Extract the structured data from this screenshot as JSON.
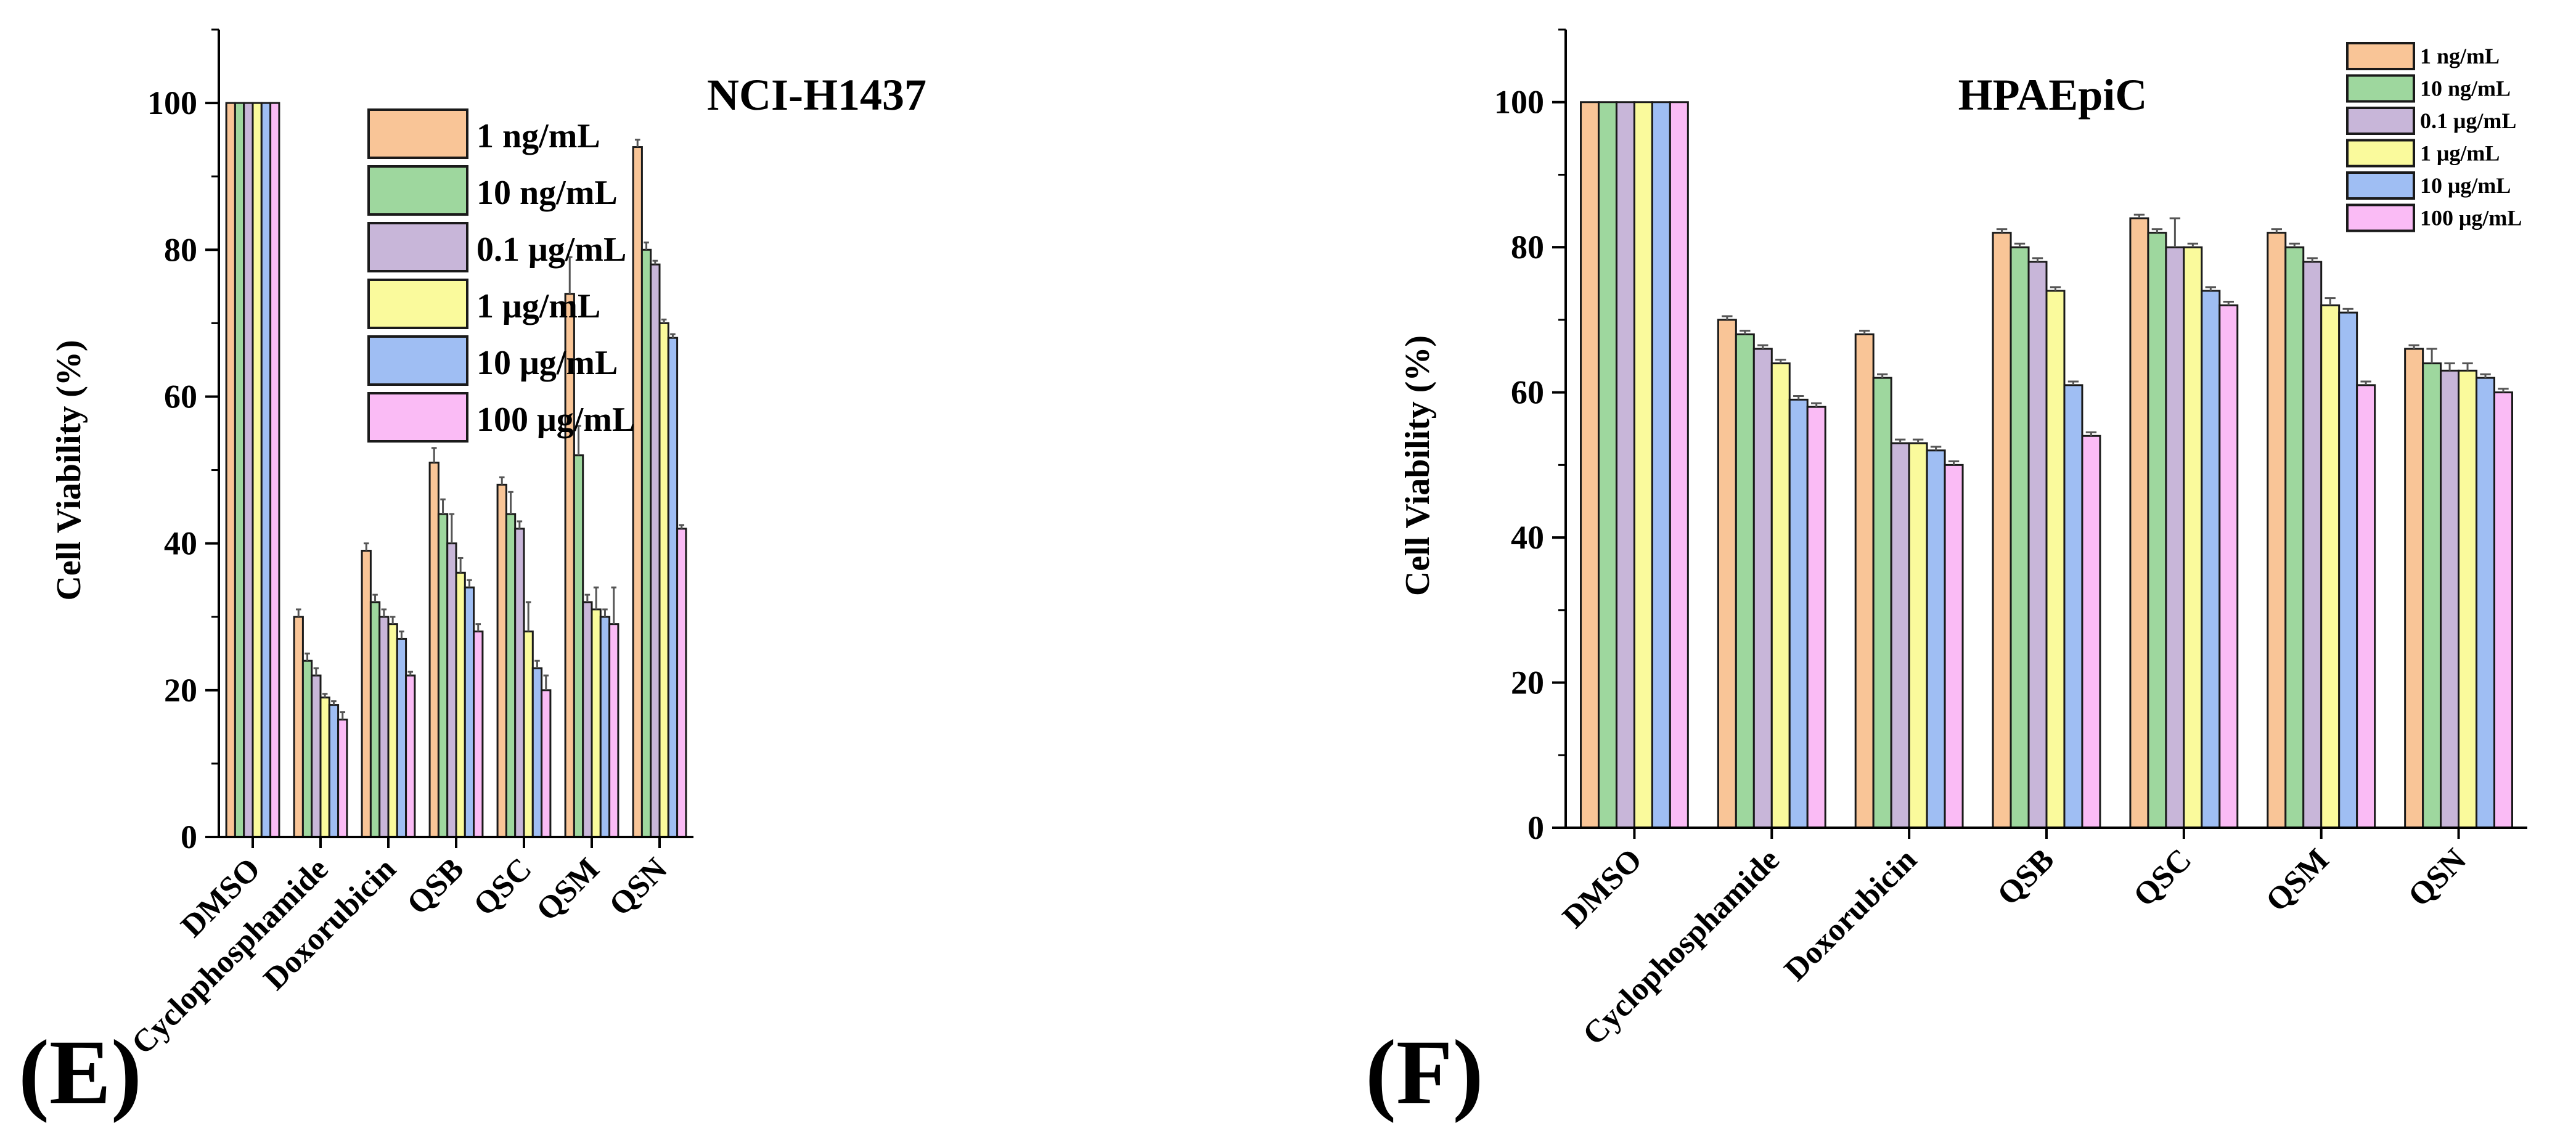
{
  "figure": {
    "panel_labels": [
      "(E)",
      "(F)"
    ]
  },
  "chart_data": [
    {
      "type": "bar",
      "panel": "(E)",
      "title": "NCI-H1437",
      "xlabel": "",
      "ylabel": "Cell Viability (%)",
      "ylim": [
        0,
        110
      ],
      "yticks": [
        0,
        20,
        40,
        60,
        80,
        100
      ],
      "grid": false,
      "legend_position": "top-center",
      "categories": [
        "DMSO",
        "Cyclophosphamide",
        "Doxorubicin",
        "QSB",
        "QSC",
        "QSM",
        "QSN"
      ],
      "series": [
        {
          "name": "1 ng/mL",
          "color": "#F9C597",
          "values": [
            100,
            30,
            39,
            51,
            48,
            74,
            94
          ],
          "errors": [
            0,
            1,
            1,
            2,
            1,
            5,
            1
          ]
        },
        {
          "name": "10 ng/mL",
          "color": "#9ED79E",
          "values": [
            100,
            24,
            32,
            44,
            44,
            52,
            80
          ],
          "errors": [
            0,
            1,
            1,
            2,
            3,
            4,
            1
          ]
        },
        {
          "name": "0.1 μg/mL",
          "color": "#C8B6D9",
          "values": [
            100,
            22,
            30,
            40,
            42,
            32,
            78
          ],
          "errors": [
            0,
            1,
            1,
            4,
            1,
            1,
            0.5
          ]
        },
        {
          "name": "1 μg/mL",
          "color": "#FAFA9C",
          "values": [
            100,
            19,
            29,
            36,
            28,
            31,
            70
          ],
          "errors": [
            0,
            0.5,
            1,
            2,
            4,
            3,
            0.5
          ]
        },
        {
          "name": "10 μg/mL",
          "color": "#9FBEF3",
          "values": [
            100,
            18,
            27,
            34,
            23,
            30,
            68
          ],
          "errors": [
            0,
            0.5,
            1,
            1,
            1,
            1,
            0.5
          ]
        },
        {
          "name": "100 μg/mL",
          "color": "#FABBF5",
          "values": [
            100,
            16,
            22,
            28,
            20,
            29,
            42
          ],
          "errors": [
            0,
            1,
            0.5,
            1,
            2,
            5,
            0.5
          ]
        }
      ]
    },
    {
      "type": "bar",
      "panel": "(F)",
      "title": "HPAEpiC",
      "xlabel": "",
      "ylabel": "Cell Viability (%)",
      "ylim": [
        0,
        110
      ],
      "yticks": [
        0,
        20,
        40,
        60,
        80,
        100
      ],
      "grid": false,
      "legend_position": "top-right",
      "categories": [
        "DMSO",
        "Cyclophosphamide",
        "Doxorubicin",
        "QSB",
        "QSC",
        "QSM",
        "QSN"
      ],
      "series": [
        {
          "name": "1 ng/mL",
          "color": "#F9C597",
          "values": [
            100,
            70,
            68,
            82,
            84,
            82,
            66
          ],
          "errors": [
            0,
            0.5,
            0.5,
            0.5,
            0.5,
            0.5,
            0.5
          ]
        },
        {
          "name": "10 ng/mL",
          "color": "#9ED79E",
          "values": [
            100,
            68,
            62,
            80,
            82,
            80,
            64
          ],
          "errors": [
            0,
            0.5,
            0.5,
            0.5,
            0.5,
            0.5,
            2
          ]
        },
        {
          "name": "0.1 μg/mL",
          "color": "#C8B6D9",
          "values": [
            100,
            66,
            53,
            78,
            80,
            78,
            63
          ],
          "errors": [
            0,
            0.5,
            0.5,
            0.5,
            4,
            0.5,
            1
          ]
        },
        {
          "name": "1 μg/mL",
          "color": "#FAFA9C",
          "values": [
            100,
            64,
            53,
            74,
            80,
            72,
            63
          ],
          "errors": [
            0,
            0.5,
            0.5,
            0.5,
            0.5,
            1,
            1
          ]
        },
        {
          "name": "10 μg/mL",
          "color": "#9FBEF3",
          "values": [
            100,
            59,
            52,
            61,
            74,
            71,
            62
          ],
          "errors": [
            0,
            0.5,
            0.5,
            0.5,
            0.5,
            0.5,
            0.5
          ]
        },
        {
          "name": "100 μg/mL",
          "color": "#FABBF5",
          "values": [
            100,
            58,
            50,
            54,
            72,
            61,
            60
          ],
          "errors": [
            0,
            0.5,
            0.5,
            0.5,
            0.5,
            0.5,
            0.5
          ]
        }
      ]
    }
  ]
}
